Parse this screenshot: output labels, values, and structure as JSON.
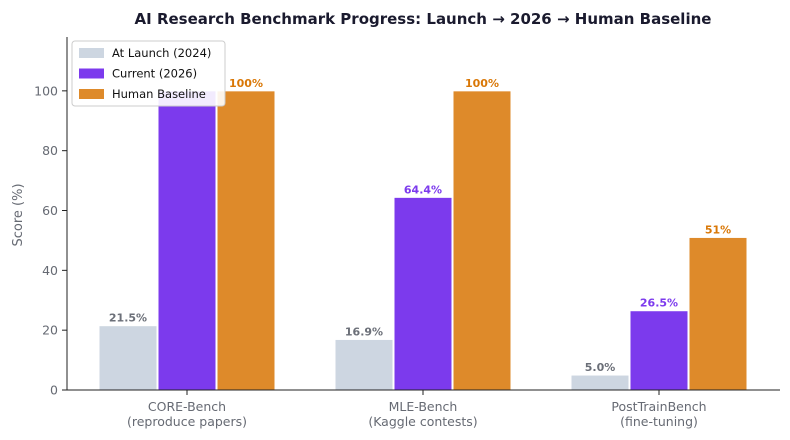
{
  "chart_data": {
    "type": "bar",
    "title": "AI Research Benchmark Progress: Launch → 2026 → Human Baseline",
    "xlabel": "",
    "ylabel": "Score (%)",
    "ylim": [
      0,
      118
    ],
    "yticks": [
      0,
      20,
      40,
      60,
      80,
      100
    ],
    "grid": false,
    "legend_position": "top-left",
    "categories": [
      [
        "CORE-Bench",
        "(reproduce papers)"
      ],
      [
        "MLE-Bench",
        "(Kaggle contests)"
      ],
      [
        "PostTrainBench",
        "(fine-tuning)"
      ]
    ],
    "series": [
      {
        "name": "At Launch (2024)",
        "color": "#cdd6e1",
        "label_color": "#6b6f78",
        "values": [
          21.5,
          16.9,
          5.0
        ],
        "labels": [
          "21.5%",
          "16.9%",
          "5.0%"
        ]
      },
      {
        "name": "Current (2026)",
        "color": "#7c3aed",
        "label_color": "#7c3aed",
        "values": [
          100,
          64.4,
          26.5
        ],
        "labels": [
          "",
          "64.4%",
          "26.5%"
        ]
      },
      {
        "name": "Human Baseline",
        "color": "#de8a2a",
        "label_color": "#d97706",
        "values": [
          100,
          100,
          51
        ],
        "labels": [
          "100%",
          "100%",
          "51%"
        ]
      }
    ]
  }
}
